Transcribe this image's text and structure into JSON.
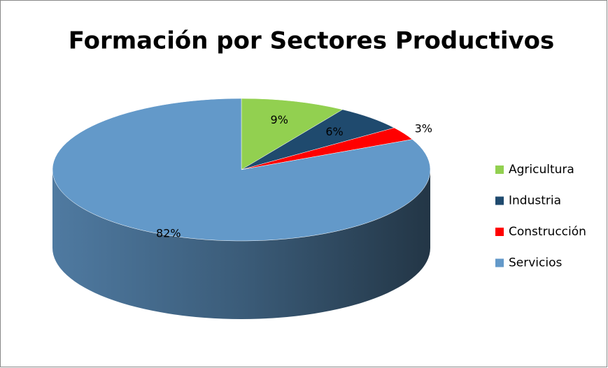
{
  "chart_data": {
    "type": "pie",
    "title": "Formación por Sectores Productivos",
    "categories": [
      "Agricultura",
      "Industria",
      "Construcción",
      "Servicios"
    ],
    "values": [
      9,
      6,
      3,
      82
    ],
    "value_labels": [
      "9%",
      "6%",
      "3%",
      "82%"
    ],
    "colors": [
      "#92d050",
      "#1f4a6e",
      "#ff0000",
      "#6399c9"
    ],
    "legend": "right"
  }
}
